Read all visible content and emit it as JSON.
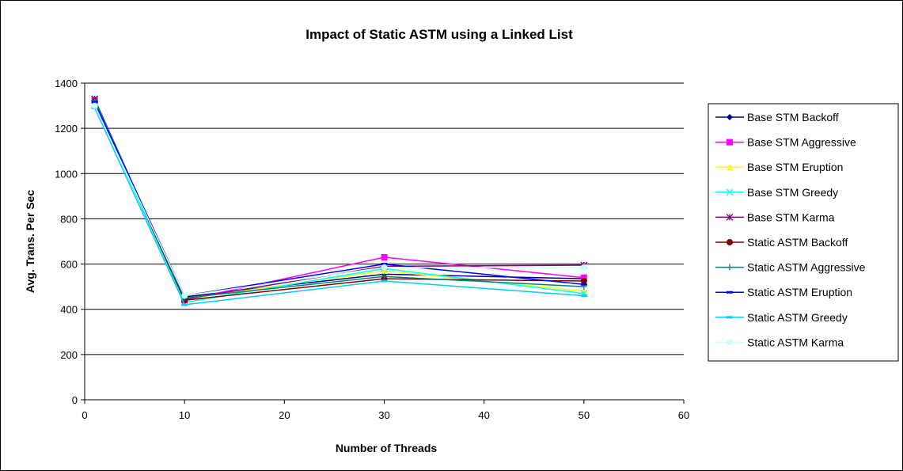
{
  "chart_data": {
    "type": "line",
    "title": "Impact of Static ASTM using a Linked List",
    "xlabel": "Number of Threads",
    "ylabel": "Avg. Trans. Per Sec",
    "xlim": [
      0,
      60
    ],
    "ylim": [
      0,
      1400
    ],
    "xticks": [
      "0",
      "10",
      "20",
      "30",
      "40",
      "50",
      "60"
    ],
    "yticks": [
      "0",
      "200",
      "400",
      "600",
      "800",
      "1000",
      "1200",
      "1400"
    ],
    "grid": "horizontal",
    "legend_position": "right",
    "x": [
      1,
      10,
      30,
      50
    ],
    "series": [
      {
        "name": "Base STM Backoff",
        "values": [
          1320,
          455,
          555,
          535
        ],
        "color": "#000080",
        "marker": "diamond"
      },
      {
        "name": "Base STM Aggressive",
        "values": [
          1325,
          440,
          630,
          540
        ],
        "color": "#ff00ff",
        "marker": "square"
      },
      {
        "name": "Base STM Eruption",
        "values": [
          1315,
          445,
          570,
          480
        ],
        "color": "#ffff00",
        "marker": "triangle"
      },
      {
        "name": "Base STM Greedy",
        "values": [
          1310,
          430,
          580,
          470
        ],
        "color": "#00ffff",
        "marker": "x"
      },
      {
        "name": "Base STM Karma",
        "values": [
          1330,
          445,
          590,
          595
        ],
        "color": "#800080",
        "marker": "star"
      },
      {
        "name": "Static ASTM Backoff",
        "values": [
          1320,
          440,
          535,
          525
        ],
        "color": "#800000",
        "marker": "circle"
      },
      {
        "name": "Static ASTM Aggressive",
        "values": [
          1325,
          450,
          545,
          500
        ],
        "color": "#008080",
        "marker": "plus"
      },
      {
        "name": "Static ASTM Eruption",
        "values": [
          1315,
          460,
          600,
          510
        ],
        "color": "#0000ff",
        "marker": "dash"
      },
      {
        "name": "Static ASTM Greedy",
        "values": [
          1290,
          420,
          525,
          460
        ],
        "color": "#00ccff",
        "marker": "dash"
      },
      {
        "name": "Static ASTM Karma",
        "values": [
          1300,
          460,
          585,
          585
        ],
        "color": "#ccffff",
        "marker": "circle"
      }
    ]
  }
}
